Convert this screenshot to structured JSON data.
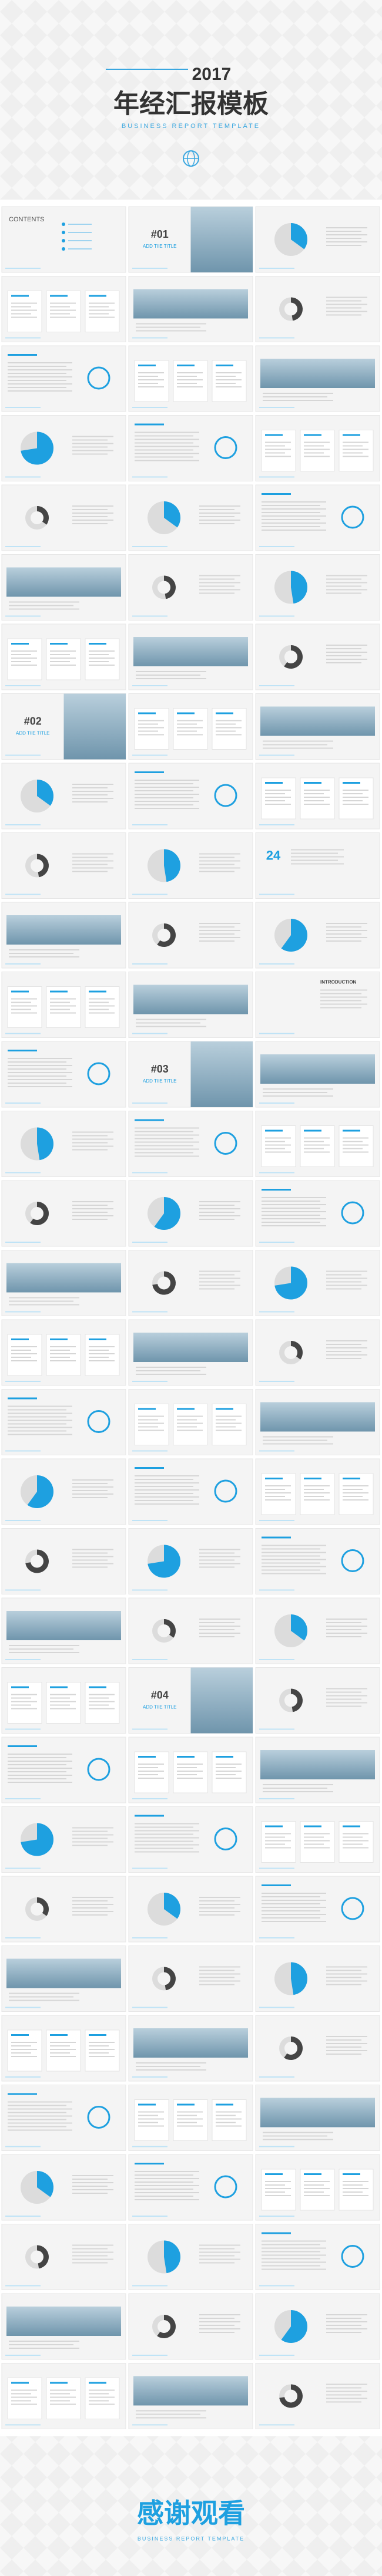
{
  "header": {
    "year": "2017",
    "title": "年经汇报模板",
    "subtitle": "BUSINESS REPORT TEMPLATE"
  },
  "contents": {
    "title": "CONTENTS"
  },
  "sections": [
    {
      "number": "#01",
      "title": "ADD TIIE TITLE"
    },
    {
      "number": "#02",
      "title": "ADD TIIE TITLE"
    },
    {
      "number": "#03",
      "title": "ADD TIIE TITLE"
    },
    {
      "number": "#04",
      "title": "ADD TIIE TITLE"
    }
  ],
  "introduction": "INTRODUCTION",
  "big_number": "24",
  "footer": {
    "title": "感谢观看",
    "subtitle": "BUSINESS REPORT TEMPLATE"
  }
}
